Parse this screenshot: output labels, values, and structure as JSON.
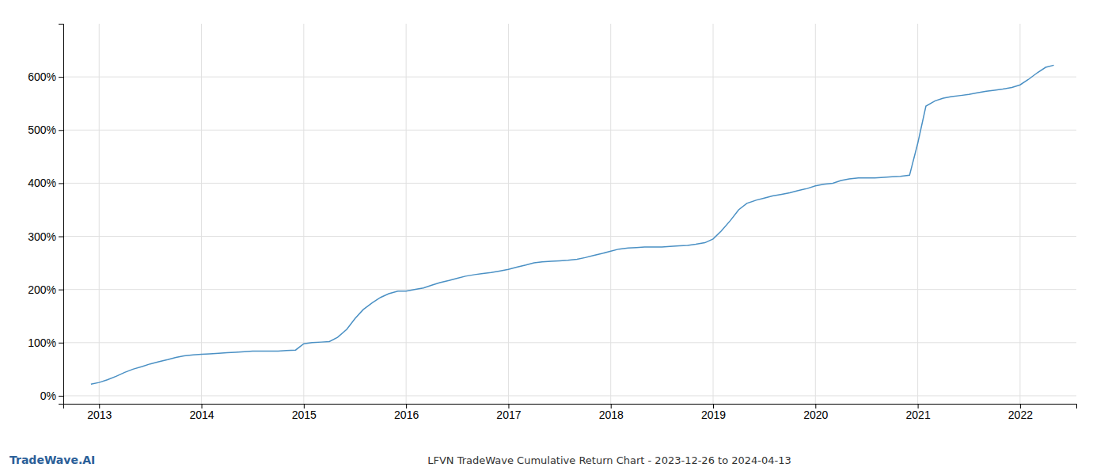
{
  "chart_data": {
    "type": "line",
    "title": "LFVN TradeWave Cumulative Return Chart - 2023-12-26 to 2024-04-13",
    "annotations": [
      "TradeWave.AI"
    ],
    "color": "#4a90c4",
    "grid": true,
    "xlim": [
      2012.65,
      2022.55
    ],
    "ylim": [
      -0.15,
      7.0
    ],
    "xticks": [
      2013,
      2014,
      2015,
      2016,
      2017,
      2018,
      2019,
      2020,
      2021,
      2022
    ],
    "yticks": [
      {
        "value": 0,
        "label": "0%"
      },
      {
        "value": 1,
        "label": "100%"
      },
      {
        "value": 2,
        "label": "200%"
      },
      {
        "value": 3,
        "label": "300%"
      },
      {
        "value": 4,
        "label": "400%"
      },
      {
        "value": 5,
        "label": "500%"
      },
      {
        "value": 6,
        "label": "600%"
      }
    ],
    "x": [
      2012.92,
      2013.0,
      2013.08,
      2013.17,
      2013.25,
      2013.33,
      2013.42,
      2013.5,
      2013.58,
      2013.67,
      2013.75,
      2013.83,
      2013.92,
      2014.0,
      2014.08,
      2014.17,
      2014.25,
      2014.33,
      2014.42,
      2014.5,
      2014.58,
      2014.67,
      2014.75,
      2014.83,
      2014.92,
      2015.0,
      2015.08,
      2015.17,
      2015.25,
      2015.33,
      2015.42,
      2015.5,
      2015.58,
      2015.67,
      2015.75,
      2015.83,
      2015.92,
      2016.0,
      2016.08,
      2016.17,
      2016.25,
      2016.33,
      2016.42,
      2016.5,
      2016.58,
      2016.67,
      2016.75,
      2016.83,
      2016.92,
      2017.0,
      2017.08,
      2017.17,
      2017.25,
      2017.33,
      2017.42,
      2017.5,
      2017.58,
      2017.67,
      2017.75,
      2017.83,
      2017.92,
      2018.0,
      2018.08,
      2018.17,
      2018.25,
      2018.33,
      2018.42,
      2018.5,
      2018.58,
      2018.67,
      2018.75,
      2018.83,
      2018.92,
      2019.0,
      2019.08,
      2019.17,
      2019.25,
      2019.33,
      2019.42,
      2019.5,
      2019.58,
      2019.67,
      2019.75,
      2019.83,
      2019.92,
      2020.0,
      2020.08,
      2020.17,
      2020.25,
      2020.33,
      2020.42,
      2020.5,
      2020.58,
      2020.67,
      2020.75,
      2020.83,
      2020.92,
      2021.0,
      2021.08,
      2021.17,
      2021.25,
      2021.33,
      2021.42,
      2021.5,
      2021.58,
      2021.67,
      2021.75,
      2021.83,
      2021.92,
      2022.0,
      2022.08,
      2022.17,
      2022.25,
      2022.33
    ],
    "values": [
      0.22,
      0.25,
      0.3,
      0.37,
      0.44,
      0.5,
      0.55,
      0.6,
      0.64,
      0.68,
      0.72,
      0.75,
      0.77,
      0.78,
      0.79,
      0.8,
      0.81,
      0.82,
      0.83,
      0.84,
      0.84,
      0.84,
      0.84,
      0.85,
      0.86,
      0.98,
      1.0,
      1.01,
      1.02,
      1.1,
      1.25,
      1.45,
      1.62,
      1.75,
      1.85,
      1.92,
      1.97,
      1.97,
      2.0,
      2.03,
      2.08,
      2.13,
      2.17,
      2.21,
      2.25,
      2.28,
      2.3,
      2.32,
      2.35,
      2.38,
      2.42,
      2.46,
      2.5,
      2.52,
      2.53,
      2.54,
      2.55,
      2.57,
      2.6,
      2.64,
      2.68,
      2.72,
      2.76,
      2.78,
      2.79,
      2.8,
      2.8,
      2.8,
      2.81,
      2.82,
      2.83,
      2.85,
      2.88,
      2.95,
      3.1,
      3.3,
      3.5,
      3.62,
      3.68,
      3.72,
      3.76,
      3.79,
      3.82,
      3.86,
      3.9,
      3.95,
      3.98,
      4.0,
      4.05,
      4.08,
      4.1,
      4.1,
      4.1,
      4.11,
      4.12,
      4.13,
      4.15,
      4.75,
      5.45,
      5.55,
      5.6,
      5.63,
      5.65,
      5.67,
      5.7,
      5.73,
      5.75,
      5.77,
      5.8,
      5.85,
      5.95,
      6.08,
      6.18,
      6.22
    ]
  }
}
